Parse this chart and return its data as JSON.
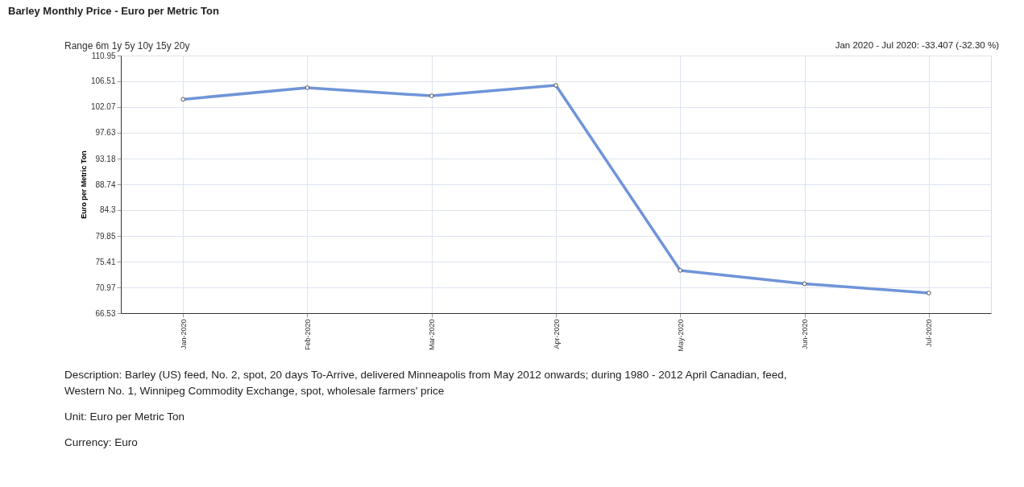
{
  "chart_data": {
    "type": "line",
    "title": "Barley Monthly Price - Euro per Metric Ton",
    "ylabel": "Euro per Metric Ton",
    "categories": [
      "Jan-2020",
      "Feb-2020",
      "Mar-2020",
      "Apr-2020",
      "May-2020",
      "Jun-2020",
      "Jul-2020"
    ],
    "series": [
      {
        "color": "#6f94d8",
        "values": [
          103.4,
          105.4,
          104.0,
          105.8,
          73.9,
          71.6,
          70.0
        ]
      }
    ],
    "ylim": [
      66.53,
      110.95
    ],
    "yticks": [
      66.53,
      70.97,
      75.41,
      79.85,
      84.3,
      88.74,
      93.18,
      97.63,
      102.07,
      106.51,
      110.95
    ],
    "grid": true,
    "marker": "circle",
    "line_style": "solid",
    "annotations": [
      "Range 6m 1y 5y 10y 15y 20y",
      "Jan 2020 - Jul 2020: -33.407 (-32.30 %)",
      "Description: Barley (US) feed, No. 2, spot, 20 days To-Arrive, delivered Minneapolis from May 2012 onwards; during 1980 - 2012 April Canadian, feed, Western No. 1, Winnipeg Commodity Exchange, spot, wholesale farmers' price",
      "Unit: Euro per Metric Ton",
      "Currency: Euro"
    ]
  }
}
